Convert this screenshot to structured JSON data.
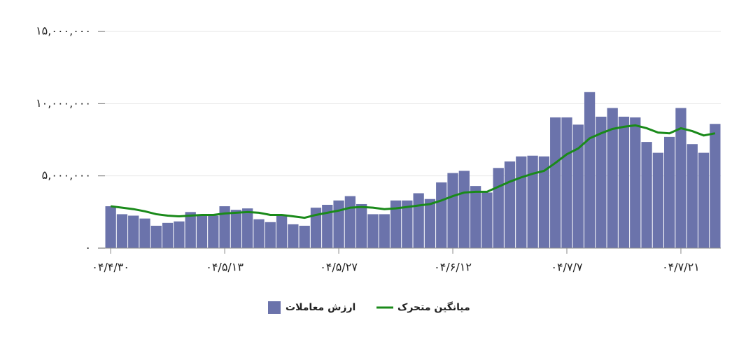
{
  "chart_data": {
    "type": "bar",
    "categories": [
      "۰۴/۴/۳۰",
      null,
      null,
      null,
      null,
      null,
      null,
      null,
      null,
      null,
      "۰۴/۵/۱۳",
      null,
      null,
      null,
      null,
      null,
      null,
      null,
      null,
      null,
      "۰۴/۵/۲۷",
      null,
      null,
      null,
      null,
      null,
      null,
      null,
      null,
      null,
      "۰۴/۶/۱۲",
      null,
      null,
      null,
      null,
      null,
      null,
      null,
      null,
      null,
      "۰۴/۷/۷",
      null,
      null,
      null,
      null,
      null,
      null,
      null,
      null,
      null,
      "۰۴/۷/۲۱",
      null,
      null,
      null
    ],
    "series": [
      {
        "name": "ارزش معاملات",
        "type": "bar",
        "color": "#6b73ab",
        "values": [
          2900000,
          2350000,
          2250000,
          2050000,
          1550000,
          1750000,
          1850000,
          2500000,
          2250000,
          2250000,
          2900000,
          2650000,
          2750000,
          2000000,
          1800000,
          2300000,
          1650000,
          1550000,
          2800000,
          3000000,
          3300000,
          3600000,
          3050000,
          2350000,
          2350000,
          3300000,
          3300000,
          3800000,
          3400000,
          4550000,
          5200000,
          5350000,
          4300000,
          3850000,
          5550000,
          6000000,
          6350000,
          6400000,
          6350000,
          9050000,
          9050000,
          8550000,
          10800000,
          9100000,
          9700000,
          9100000,
          9050000,
          7350000,
          6600000,
          7700000,
          9700000,
          7200000,
          6600000,
          8600000
        ]
      },
      {
        "name": "میانگین متحرک",
        "type": "line",
        "color": "#1a8a1a",
        "values": [
          2900000,
          2800000,
          2700000,
          2550000,
          2350000,
          2250000,
          2200000,
          2250000,
          2300000,
          2300000,
          2400000,
          2450000,
          2500000,
          2450000,
          2300000,
          2300000,
          2200000,
          2100000,
          2300000,
          2450000,
          2600000,
          2800000,
          2850000,
          2800000,
          2700000,
          2750000,
          2850000,
          2950000,
          3050000,
          3300000,
          3600000,
          3850000,
          3900000,
          3900000,
          4250000,
          4600000,
          4900000,
          5150000,
          5350000,
          5900000,
          6500000,
          6900000,
          7600000,
          7950000,
          8250000,
          8400000,
          8500000,
          8300000,
          8000000,
          7950000,
          8300000,
          8100000,
          7800000,
          7950000
        ]
      }
    ],
    "ylim": [
      0,
      15000000
    ],
    "yticks": [
      {
        "value": 0,
        "label": "۰"
      },
      {
        "value": 5000000,
        "label": "۵,۰۰۰,۰۰۰"
      },
      {
        "value": 10000000,
        "label": "۱۰,۰۰۰,۰۰۰"
      },
      {
        "value": 15000000,
        "label": "۱۵,۰۰۰,۰۰۰"
      }
    ],
    "grid": true
  }
}
